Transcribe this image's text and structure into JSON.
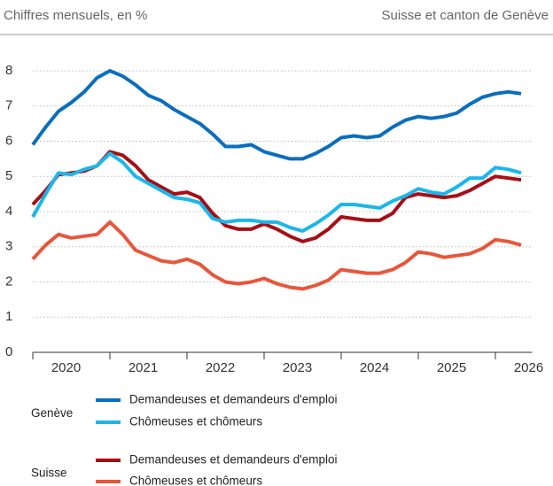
{
  "chart_data": {
    "type": "line",
    "title": "Chiffres mensuels, en %",
    "subtitle": "Suisse et canton de Genève",
    "x": [
      2020,
      2020.167,
      2020.333,
      2020.5,
      2020.667,
      2020.833,
      2021,
      2021.167,
      2021.333,
      2021.5,
      2021.667,
      2021.833,
      2022,
      2022.167,
      2022.333,
      2022.5,
      2022.667,
      2022.833,
      2023,
      2023.167,
      2023.333,
      2023.5,
      2023.667,
      2023.833,
      2024,
      2024.167,
      2024.333,
      2024.5,
      2024.667,
      2024.833,
      2025,
      2025.167,
      2025.333,
      2025.5,
      2025.667,
      2025.833,
      2026,
      2026.167,
      2026.333
    ],
    "xlim": [
      2020,
      2026.5
    ],
    "xticks": [
      2020,
      2021,
      2022,
      2023,
      2024,
      2025,
      2026
    ],
    "xlabels": [
      {
        "value": 2020.5,
        "label": "2020"
      },
      {
        "value": 2021.5,
        "label": "2021"
      },
      {
        "value": 2022.5,
        "label": "2022"
      },
      {
        "value": 2023.5,
        "label": "2023"
      },
      {
        "value": 2024.5,
        "label": "2024"
      },
      {
        "value": 2025.5,
        "label": "2025"
      },
      {
        "value": 2026.5,
        "label": "2026"
      }
    ],
    "ylim": [
      0,
      8
    ],
    "yticks": [
      0,
      1,
      2,
      3,
      4,
      5,
      6,
      7,
      8
    ],
    "grid": true,
    "series": [
      {
        "group": "Genève",
        "name": "Demandeuses et demandeurs d'emploi",
        "color": "#0a6ebd",
        "values": [
          5.9,
          6.4,
          6.85,
          7.1,
          7.4,
          7.8,
          8.0,
          7.85,
          7.6,
          7.3,
          7.15,
          6.9,
          6.7,
          6.5,
          6.2,
          5.85,
          5.85,
          5.9,
          5.7,
          5.6,
          5.5,
          5.5,
          5.65,
          5.85,
          6.1,
          6.15,
          6.1,
          6.15,
          6.4,
          6.6,
          6.7,
          6.65,
          6.7,
          6.8,
          7.05,
          7.25,
          7.35,
          7.4,
          7.35
        ]
      },
      {
        "group": "Genève",
        "name": "Chômeuses et chômeurs",
        "color": "#1ab7ea",
        "values": [
          3.85,
          4.5,
          5.1,
          5.05,
          5.2,
          5.3,
          5.65,
          5.4,
          5.0,
          4.8,
          4.6,
          4.4,
          4.35,
          4.25,
          3.8,
          3.7,
          3.75,
          3.75,
          3.7,
          3.7,
          3.55,
          3.45,
          3.65,
          3.9,
          4.2,
          4.2,
          4.15,
          4.1,
          4.3,
          4.45,
          4.65,
          4.55,
          4.5,
          4.7,
          4.95,
          4.95,
          5.25,
          5.2,
          5.1
        ]
      },
      {
        "group": "Suisse",
        "name": "Demandeuses et demandeurs d'emploi",
        "color": "#a50f15",
        "values": [
          4.2,
          4.6,
          5.05,
          5.1,
          5.15,
          5.3,
          5.7,
          5.6,
          5.3,
          4.9,
          4.7,
          4.5,
          4.55,
          4.4,
          3.95,
          3.6,
          3.5,
          3.5,
          3.65,
          3.5,
          3.3,
          3.15,
          3.25,
          3.5,
          3.85,
          3.8,
          3.75,
          3.75,
          3.95,
          4.4,
          4.5,
          4.45,
          4.4,
          4.45,
          4.6,
          4.8,
          5.0,
          4.95,
          4.9
        ]
      },
      {
        "group": "Suisse",
        "name": "Chômeuses et chômeurs",
        "color": "#e8563a",
        "values": [
          2.65,
          3.05,
          3.35,
          3.25,
          3.3,
          3.35,
          3.7,
          3.35,
          2.9,
          2.75,
          2.6,
          2.55,
          2.65,
          2.5,
          2.2,
          2.0,
          1.95,
          2.0,
          2.1,
          1.95,
          1.85,
          1.8,
          1.9,
          2.05,
          2.35,
          2.3,
          2.25,
          2.25,
          2.35,
          2.55,
          2.85,
          2.8,
          2.7,
          2.75,
          2.8,
          2.95,
          3.2,
          3.15,
          3.05
        ]
      }
    ]
  }
}
